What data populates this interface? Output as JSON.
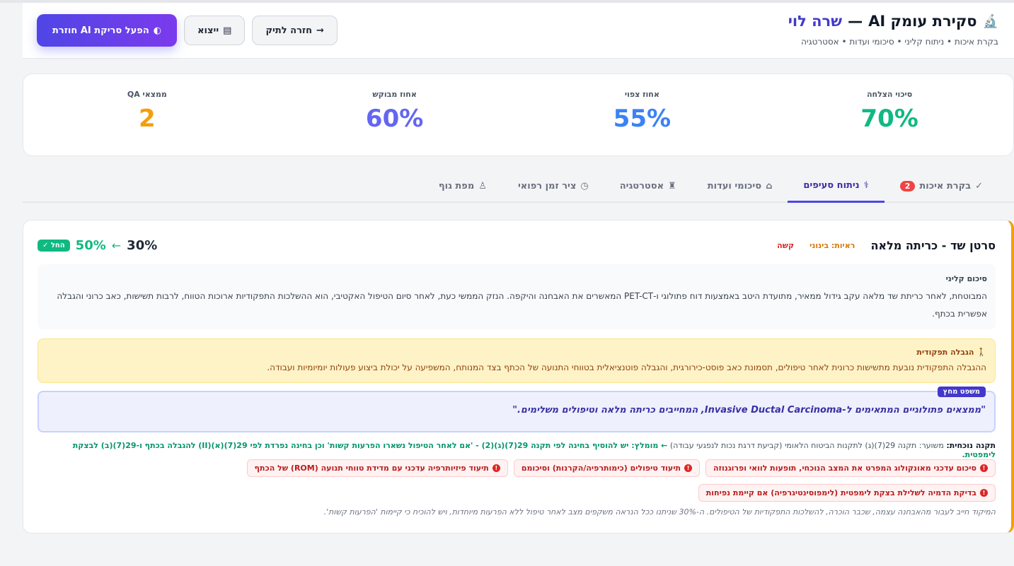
{
  "header": {
    "title_main": "סקירת עומק AI",
    "title_dash": "—",
    "title_name": "שרה לוי",
    "subtitle": "בקרת איכות • ניתוח קליני • סיכומי ועדות • אסטרטגיה",
    "icon": "microscope-icon",
    "buttons": {
      "rerun": "הפעל סריקת AI חוזרת",
      "export": "ייצוא",
      "back": "חזרה לתיק"
    }
  },
  "stats": [
    {
      "label": "סיכוי הצלחה",
      "value": "70%",
      "color": "#10b981"
    },
    {
      "label": "אחוז צפוי",
      "value": "55%",
      "color": "#3b82f6"
    },
    {
      "label": "אחוז מבוקש",
      "value": "60%",
      "color": "#6366f1"
    },
    {
      "label": "ממצאי QA",
      "value": "2",
      "color": "#f59e0b"
    }
  ],
  "tabs": [
    {
      "label": "בקרת איכות",
      "badge": "2",
      "icon": "double-check-icon"
    },
    {
      "label": "ניתוח סעיפים",
      "icon": "stethoscope-icon",
      "active": true
    },
    {
      "label": "סיכומי ועדות",
      "icon": "building-icon"
    },
    {
      "label": "אסטרטגיה",
      "icon": "chess-icon"
    },
    {
      "label": "ציר זמן רפואי",
      "icon": "clock-icon"
    },
    {
      "label": "מפת גוף",
      "icon": "person-icon"
    }
  ],
  "card": {
    "title": "סרטן שד - כריתה מלאה",
    "tag_readiness": "ראיות: בינוני",
    "tag_difficulty": "קשה",
    "pct_old": "30%",
    "pct_arrow": "←",
    "pct_new": "50%",
    "ok_label": "החל",
    "summary_label": "סיכום קליני",
    "summary_text": "המבוטחת, לאחר כריתת שד מלאה עקב גידול ממאיר, מתועדת היטב באמצעות דוח פתולוגי ו-PET-CT המאשרים את האבחנה והיקפה. הנזק הממשי כעת, לאחר סיום הטיפול האקטיבי, הוא ההשלכות התפקודיות ארוכות הטווח, לרבות תשישות, כאב כרוני והגבלה אפשרית בכתף.",
    "limit_label": "הגבלה תפקודית",
    "limit_text": "ההגבלה התפקודית נובעת מתשישות כרונית לאחר טיפולים, תסמונת כאב פוסט-כירורגית, והגבלה פוטנציאלית בטווחי התנועה של הכתף בצד המנותח, המשפיעה על יכולת ביצוע פעולות יומיומיות ועבודה.",
    "quote_badge": "משפט מחץ",
    "quote_text": "\"ממצאים פתולוגיים המתאימים ל-Invasive Ductal Carcinoma, המחייבים כריתה מלאה וטיפולים משלימים.\"",
    "reg_label": "תקנה נוכחית:",
    "reg_text": "משוער: תקנה 29(7)(ג) לתקנות הביטוח הלאומי (קביעת דרגת נכות לנפגעי עבודה)",
    "reg_rec": "← מומלץ: יש להוסיף בחינה לפי תקנה 29(7)(ג)(2) - 'אם לאחר הטיפול נשארו הפרעות קשות' וכן בחינה נפרדת לפי 29(7)(א)(II) להגבלה בכתף ו-29(7)(ב) לבצקת לימפטית.",
    "pills": [
      "סיכום עדכני מאונקולוג המפרט את המצב הנוכחי, תופעות לוואי ופרוגנוזה",
      "תיעוד טיפולים (כימותרפיה/הקרנות) וסיכומם",
      "תיעוד פיזיותרפיה עדכני עם מדידת טווחי תנועה (ROM) של הכתף",
      "בדיקת הדמיה לשלילת בצקת לימפטית (לימפוסינטיגרפיה) אם קיימת נפיחות"
    ],
    "footnote": "המיקוד חייב לעבור מהאבחנה עצמה, שכבר הוכרה, להשלכות התפקודיות של הטיפולים. ה-30% שניתנו ככל הנראה משקפים מצב לאחר טיפול ללא הפרעות מיוחדות, ויש להוכיח כי קיימות 'הפרעות קשות'."
  }
}
